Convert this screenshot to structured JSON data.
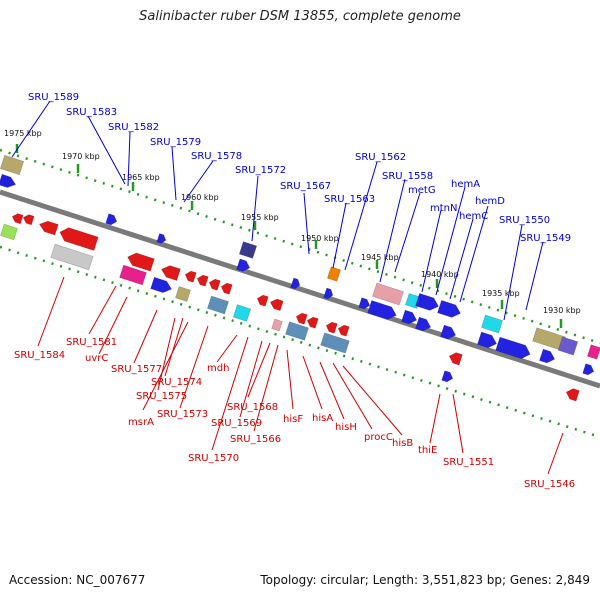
{
  "title": "Salinibacter ruber DSM 13855, complete genome",
  "footer": {
    "accession": "Accession: NC_007677",
    "stats": "Topology: circular; Length: 3,551,823 bp; Genes: 2,849"
  },
  "colors": {
    "forward_label": "#0000cc",
    "reverse_label": "#cc0000",
    "backbone": "#808080",
    "tick_track": "#22aa22"
  },
  "kbp_ticks": [
    "1975 kbp",
    "1970 kbp",
    "1965 kbp",
    "1960 kbp",
    "1955 kbp",
    "1950 kbp",
    "1945 kbp",
    "1940 kbp",
    "1935 kbp",
    "1930 kbp"
  ],
  "forward_genes": [
    "SRU_1589",
    "SRU_1583",
    "SRU_1582",
    "SRU_1579",
    "SRU_1578",
    "SRU_1572",
    "SRU_1567",
    "SRU_1563",
    "SRU_1562",
    "SRU_1558",
    "metG",
    "mtnN",
    "hemA",
    "hemC",
    "hemD",
    "SRU_1550",
    "SRU_1549"
  ],
  "reverse_genes": [
    "SRU_1584",
    "SRU_1581",
    "uvrC",
    "SRU_1577",
    "SRU_1574",
    "SRU_1575",
    "msrA",
    "SRU_1573",
    "mdh",
    "SRU_1568",
    "SRU_1569",
    "SRU_1570",
    "SRU_1566",
    "hisF",
    "hisA",
    "hisH",
    "procC",
    "hisB",
    "thiE",
    "SRU_1551",
    "SRU_1546"
  ]
}
